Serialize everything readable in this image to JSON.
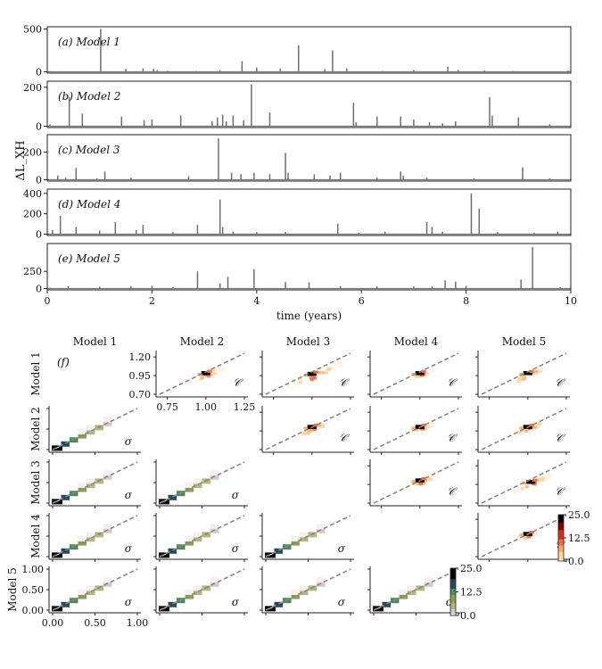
{
  "chart_data": [
    {
      "type": "line",
      "xlabel": "time (years)",
      "ylabel": "ΔL_XH",
      "xlim": [
        0,
        10
      ],
      "xticks": [
        "0",
        "2",
        "4",
        "6",
        "8",
        "10"
      ],
      "panels": [
        {
          "label": "(a) Model 1",
          "ylim": [
            0,
            500
          ],
          "yticks": [
            "500",
            "0"
          ],
          "spikes": [
            [
              0.05,
              8
            ],
            [
              0.3,
              5
            ],
            [
              0.62,
              6
            ],
            [
              1.02,
              500
            ],
            [
              1.5,
              35
            ],
            [
              1.83,
              40
            ],
            [
              2.03,
              35
            ],
            [
              2.1,
              20
            ],
            [
              2.3,
              12
            ],
            [
              2.85,
              10
            ],
            [
              3.3,
              15
            ],
            [
              3.72,
              125
            ],
            [
              4.0,
              50
            ],
            [
              4.45,
              35
            ],
            [
              4.8,
              310
            ],
            [
              5.3,
              30
            ],
            [
              5.45,
              250
            ],
            [
              5.72,
              40
            ],
            [
              6.4,
              10
            ],
            [
              7.0,
              20
            ],
            [
              7.65,
              60
            ],
            [
              7.85,
              20
            ],
            [
              8.35,
              15
            ],
            [
              8.9,
              10
            ],
            [
              9.95,
              15
            ]
          ]
        },
        {
          "label": "(b) Model 2",
          "ylim": [
            0,
            220
          ],
          "yticks": [
            "200",
            "0"
          ],
          "spikes": [
            [
              0.05,
              10
            ],
            [
              0.42,
              150
            ],
            [
              0.67,
              65
            ],
            [
              1.42,
              50
            ],
            [
              1.85,
              30
            ],
            [
              2.0,
              35
            ],
            [
              2.55,
              55
            ],
            [
              3.15,
              25
            ],
            [
              3.25,
              45
            ],
            [
              3.35,
              60
            ],
            [
              3.42,
              25
            ],
            [
              3.55,
              55
            ],
            [
              3.75,
              30
            ],
            [
              3.9,
              215
            ],
            [
              4.25,
              70
            ],
            [
              5.85,
              120
            ],
            [
              5.9,
              20
            ],
            [
              6.3,
              50
            ],
            [
              6.75,
              50
            ],
            [
              7.0,
              35
            ],
            [
              7.3,
              20
            ],
            [
              7.55,
              15
            ],
            [
              7.8,
              25
            ],
            [
              8.45,
              150
            ],
            [
              8.5,
              55
            ],
            [
              9.0,
              45
            ],
            [
              9.6,
              10
            ]
          ]
        },
        {
          "label": "(c) Model 3",
          "ylim": [
            0,
            310
          ],
          "yticks": [
            "200",
            "0"
          ],
          "spikes": [
            [
              0.2,
              30
            ],
            [
              0.35,
              15
            ],
            [
              0.55,
              85
            ],
            [
              0.95,
              10
            ],
            [
              1.1,
              60
            ],
            [
              1.6,
              15
            ],
            [
              2.7,
              25
            ],
            [
              3.27,
              300
            ],
            [
              3.52,
              50
            ],
            [
              3.7,
              40
            ],
            [
              3.95,
              50
            ],
            [
              4.25,
              40
            ],
            [
              4.55,
              195
            ],
            [
              4.6,
              50
            ],
            [
              5.1,
              40
            ],
            [
              5.4,
              30
            ],
            [
              5.6,
              50
            ],
            [
              6.3,
              15
            ],
            [
              6.75,
              60
            ],
            [
              6.8,
              30
            ],
            [
              7.25,
              15
            ],
            [
              8.15,
              10
            ],
            [
              9.08,
              90
            ],
            [
              9.6,
              10
            ]
          ]
        },
        {
          "label": "(d) Model 4",
          "ylim": [
            0,
            420
          ],
          "yticks": [
            "400",
            "200",
            "0"
          ],
          "spikes": [
            [
              0.1,
              40
            ],
            [
              0.25,
              180
            ],
            [
              0.55,
              70
            ],
            [
              1.0,
              35
            ],
            [
              1.3,
              120
            ],
            [
              1.7,
              40
            ],
            [
              1.83,
              90
            ],
            [
              2.4,
              20
            ],
            [
              2.87,
              90
            ],
            [
              3.3,
              340
            ],
            [
              3.35,
              70
            ],
            [
              3.55,
              25
            ],
            [
              4.0,
              20
            ],
            [
              4.55,
              20
            ],
            [
              5.55,
              100
            ],
            [
              5.95,
              15
            ],
            [
              6.45,
              25
            ],
            [
              7.25,
              120
            ],
            [
              7.35,
              70
            ],
            [
              7.55,
              25
            ],
            [
              8.1,
              400
            ],
            [
              8.25,
              250
            ],
            [
              8.6,
              20
            ],
            [
              9.3,
              15
            ],
            [
              9.75,
              25
            ]
          ]
        },
        {
          "label": "(e) Model 5",
          "ylim": [
            0,
            620
          ],
          "yticks": [
            "250",
            "0"
          ],
          "spikes": [
            [
              0.05,
              10
            ],
            [
              0.4,
              35
            ],
            [
              1.0,
              25
            ],
            [
              1.6,
              30
            ],
            [
              2.0,
              40
            ],
            [
              2.4,
              20
            ],
            [
              2.87,
              250
            ],
            [
              3.3,
              75
            ],
            [
              3.45,
              170
            ],
            [
              3.95,
              280
            ],
            [
              4.55,
              95
            ],
            [
              5.0,
              90
            ],
            [
              5.6,
              35
            ],
            [
              6.3,
              30
            ],
            [
              7.0,
              30
            ],
            [
              7.35,
              30
            ],
            [
              7.6,
              120
            ],
            [
              7.8,
              100
            ],
            [
              8.0,
              40
            ],
            [
              9.05,
              130
            ],
            [
              9.27,
              600
            ],
            [
              9.8,
              20
            ]
          ]
        }
      ]
    },
    {
      "type": "heatmap",
      "panel_label": "(f)",
      "models": [
        "Model 1",
        "Model 2",
        "Model 3",
        "Model 4",
        "Model 5"
      ],
      "upper_symbol": "𝒞",
      "lower_symbol": "σ",
      "upper_axis": {
        "ticks": [
          "0.70",
          "0.95",
          "1.20"
        ],
        "xticks": [
          "0.75",
          "1.00",
          "1.25"
        ],
        "range": [
          0.7,
          1.25
        ]
      },
      "lower_axis": {
        "ticks": [
          "0.00",
          "0.50",
          "1.00"
        ],
        "range": [
          0,
          1
        ]
      },
      "colorbars": [
        {
          "ticks": [
            "25.0",
            "12.5",
            "0.0"
          ],
          "range": [
            0,
            25
          ],
          "scheme": "heat"
        },
        {
          "ticks": [
            "25.0",
            "12.5",
            "0.0"
          ],
          "range": [
            0,
            25
          ],
          "scheme": "cubehelix"
        }
      ],
      "lower_blocks": [
        {
          "x": 0.05,
          "y": 0.05,
          "count": 25
        },
        {
          "x": 0.15,
          "y": 0.15,
          "count": 15
        },
        {
          "x": 0.25,
          "y": 0.25,
          "count": 12
        },
        {
          "x": 0.35,
          "y": 0.35,
          "count": 10
        },
        {
          "x": 0.45,
          "y": 0.45,
          "count": 7
        },
        {
          "x": 0.55,
          "y": 0.55,
          "count": 4
        },
        {
          "x": 0.65,
          "y": 0.65,
          "count": 2
        },
        {
          "x": 0.35,
          "y": 0.45,
          "count": 1
        },
        {
          "x": 0.45,
          "y": 0.55,
          "count": 1
        },
        {
          "x": 0.65,
          "y": 0.75,
          "count": 1
        }
      ],
      "upper_clusters": {
        "1-2": {
          "cx": 1.0,
          "cy": 0.98,
          "spread": 0.1
        },
        "1-3": {
          "cx": 1.0,
          "cy": 0.97,
          "spread": 0.18
        },
        "1-4": {
          "cx": 1.0,
          "cy": 0.98,
          "spread": 0.07
        },
        "1-5": {
          "cx": 1.0,
          "cy": 0.98,
          "spread": 0.1
        },
        "2-3": {
          "cx": 1.0,
          "cy": 1.0,
          "spread": 0.12
        },
        "2-4": {
          "cx": 1.0,
          "cy": 1.0,
          "spread": 0.08
        },
        "2-5": {
          "cx": 1.0,
          "cy": 1.0,
          "spread": 0.09
        },
        "3-4": {
          "cx": 1.0,
          "cy": 1.0,
          "spread": 0.1
        },
        "3-5": {
          "cx": 1.02,
          "cy": 0.98,
          "spread": 0.12
        },
        "4-5": {
          "cx": 1.0,
          "cy": 1.0,
          "spread": 0.05
        }
      }
    }
  ]
}
